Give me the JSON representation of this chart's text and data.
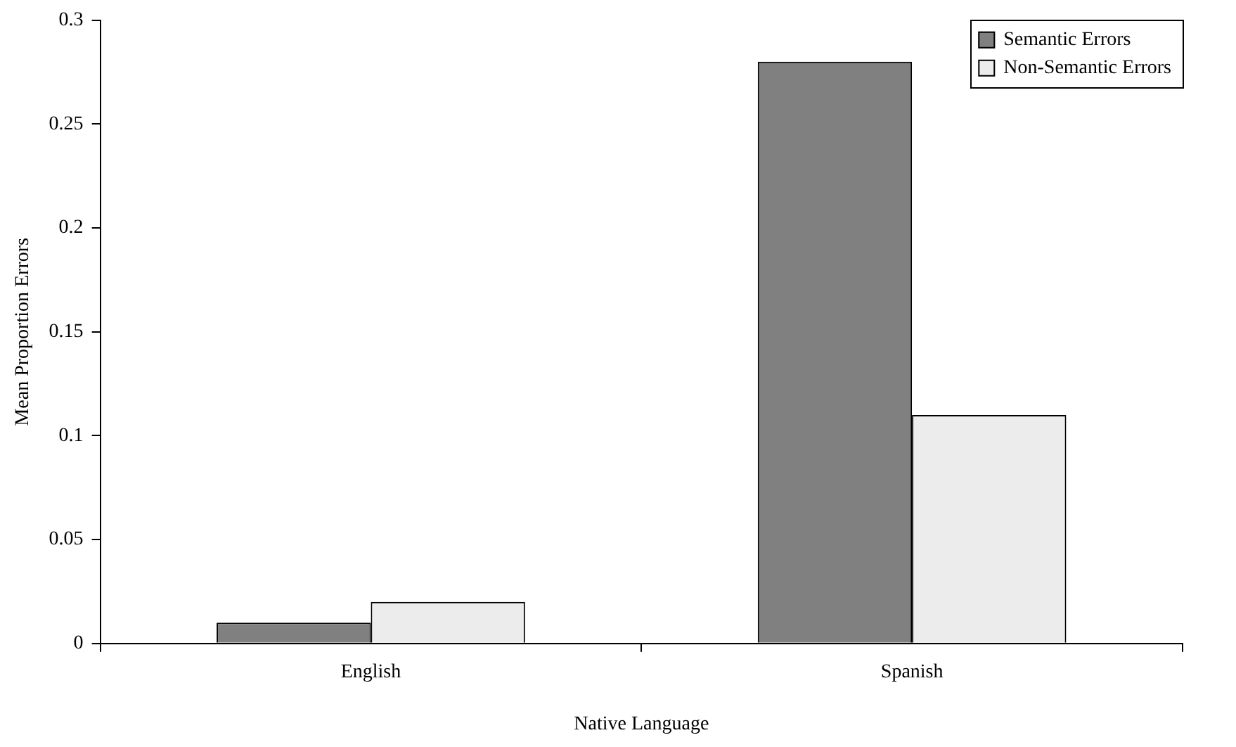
{
  "chart_data": {
    "type": "bar",
    "xlabel": "Native Language",
    "ylabel": "Mean Proportion Errors",
    "categories": [
      "English",
      "Spanish"
    ],
    "series": [
      {
        "name": "Semantic Errors",
        "color": "#808080",
        "values": [
          0.01,
          0.28
        ]
      },
      {
        "name": "Non-Semantic Errors",
        "color": "#ececec",
        "values": [
          0.02,
          0.11
        ]
      }
    ],
    "ylim": [
      0,
      0.3
    ],
    "yticks": [
      0,
      0.05,
      0.1,
      0.15,
      0.2,
      0.25,
      0.3
    ],
    "grid": false,
    "legend": "top right"
  }
}
